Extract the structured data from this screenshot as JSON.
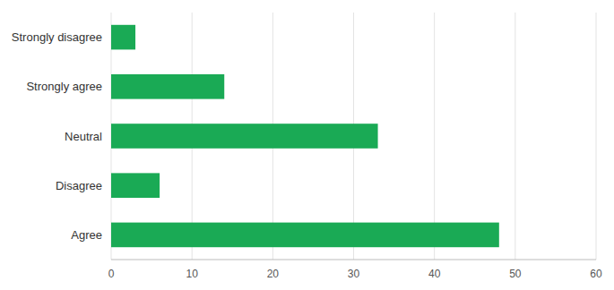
{
  "chart_data": {
    "type": "bar",
    "orientation": "horizontal",
    "categories": [
      "Strongly disagree",
      "Strongly agree",
      "Neutral",
      "Disagree",
      "Agree"
    ],
    "values": [
      3,
      14,
      33,
      6,
      48
    ],
    "color": "#1aaa55",
    "xlim": [
      0,
      60
    ],
    "xticks": [
      0,
      10,
      20,
      30,
      40,
      50,
      60
    ],
    "grid": true
  }
}
